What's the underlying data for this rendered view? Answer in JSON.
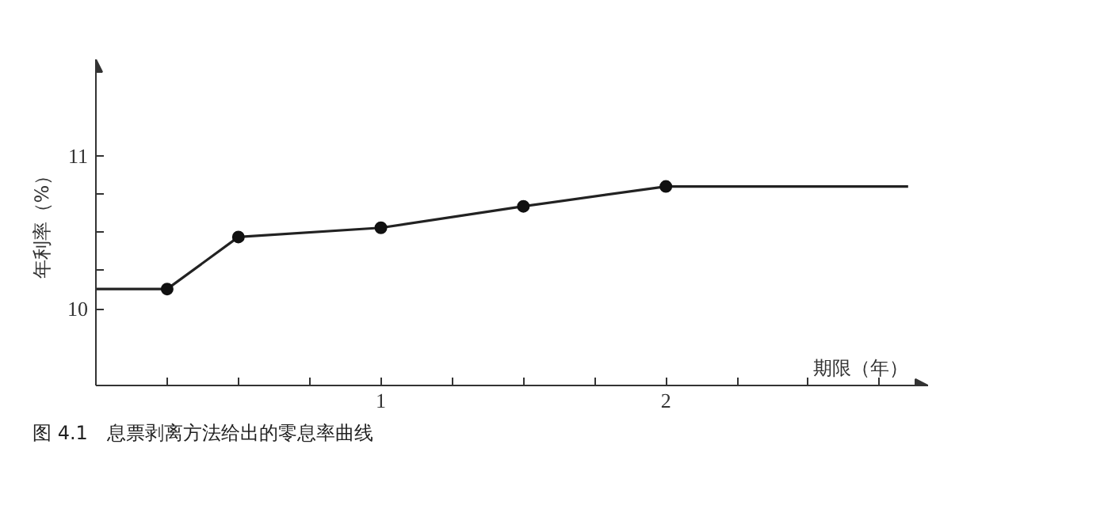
{
  "chart_data": {
    "type": "line",
    "title": "图 4.1　息票剥离方法给出的零息率曲线",
    "xlabel": "期限（年）",
    "ylabel": "年利率（%）",
    "xlim": [
      0,
      2.92
    ],
    "ylim": [
      9.5,
      11.63
    ],
    "xticks": [
      {
        "value": 0.25,
        "label": null
      },
      {
        "value": 0.5,
        "label": null
      },
      {
        "value": 0.75,
        "label": null
      },
      1,
      {
        "value": 1.25,
        "label": null
      },
      {
        "value": 1.5,
        "label": null
      },
      {
        "value": 1.75,
        "label": null
      },
      2,
      {
        "value": 2.25,
        "label": null
      },
      {
        "value": 2.5,
        "label": null
      },
      {
        "value": 2.75,
        "label": null
      }
    ],
    "yticks": [
      10,
      {
        "value": 10.25,
        "label": null
      },
      {
        "value": 10.5,
        "label": null
      },
      {
        "value": 10.75,
        "label": null
      },
      11
    ],
    "grid": false,
    "series": [
      {
        "color": "#222222",
        "marker": "none",
        "x": [
          0,
          0.25,
          0.5,
          1,
          1.5,
          2,
          2.85
        ],
        "values": [
          10.13,
          10.13,
          10.47,
          10.53,
          10.67,
          10.8,
          10.8
        ]
      },
      {
        "type": "scatter",
        "color": "#111111",
        "marker": "circle",
        "x": [
          0.25,
          0.5,
          1,
          1.5,
          2
        ],
        "values": [
          10.13,
          10.47,
          10.53,
          10.67,
          10.8
        ]
      }
    ]
  }
}
